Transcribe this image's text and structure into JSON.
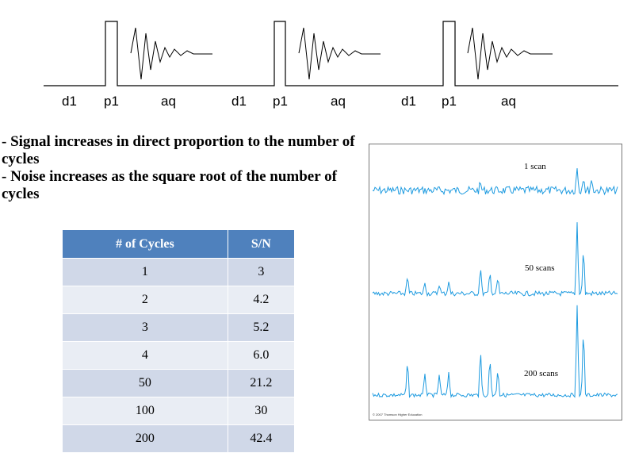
{
  "pulse_sequence": {
    "labels": [
      "d1",
      "p1",
      "aq",
      "d1",
      "p1",
      "aq",
      "d1",
      "p1",
      "aq"
    ]
  },
  "bullets": [
    "- Signal increases in direct proportion to the number of cycles",
    "- Noise increases as the square root of the number of cycles"
  ],
  "table": {
    "headers": [
      "# of Cycles",
      "S/N"
    ],
    "rows": [
      [
        "1",
        "3"
      ],
      [
        "2",
        "4.2"
      ],
      [
        "3",
        "5.2"
      ],
      [
        "4",
        "6.0"
      ],
      [
        "50",
        "21.2"
      ],
      [
        "100",
        "30"
      ],
      [
        "200",
        "42.4"
      ]
    ]
  },
  "spectrum": {
    "labels": [
      "1 scan",
      "50 scans",
      "200 scans"
    ],
    "line_color": "#1e9be0",
    "copyright": "© 2007 Thomson Higher Education"
  }
}
